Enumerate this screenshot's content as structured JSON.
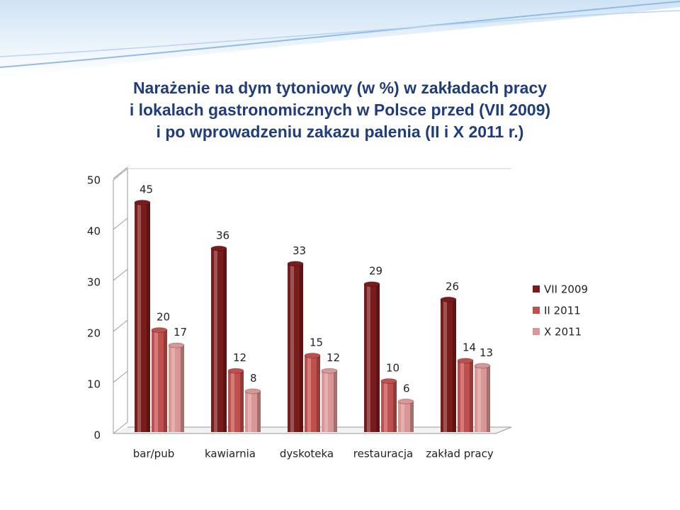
{
  "chart_data": {
    "type": "bar3d",
    "title": [
      "Narażenie na dym tytoniowy (w %) w zakładach pracy",
      "i lokalach gastronomicznych w Polsce przed (VII 2009)",
      "i po wprowadzeniu zakazu palenia (II i X 2011 r.)"
    ],
    "categories": [
      "bar/pub",
      "kawiarnia",
      "dyskoteka",
      "restauracja",
      "zakład pracy"
    ],
    "series": [
      {
        "name": "VII 2009",
        "color": "#7a1c1c",
        "values": [
          45,
          36,
          33,
          29,
          26
        ]
      },
      {
        "name": "II 2011",
        "color": "#c0504d",
        "values": [
          20,
          12,
          15,
          10,
          14
        ]
      },
      {
        "name": "X 2011",
        "color": "#d99694",
        "values": [
          17,
          8,
          12,
          6,
          13
        ]
      }
    ],
    "ylim": [
      0,
      50
    ],
    "yticks": [
      0,
      10,
      20,
      30,
      40,
      50
    ],
    "legend": "right"
  }
}
